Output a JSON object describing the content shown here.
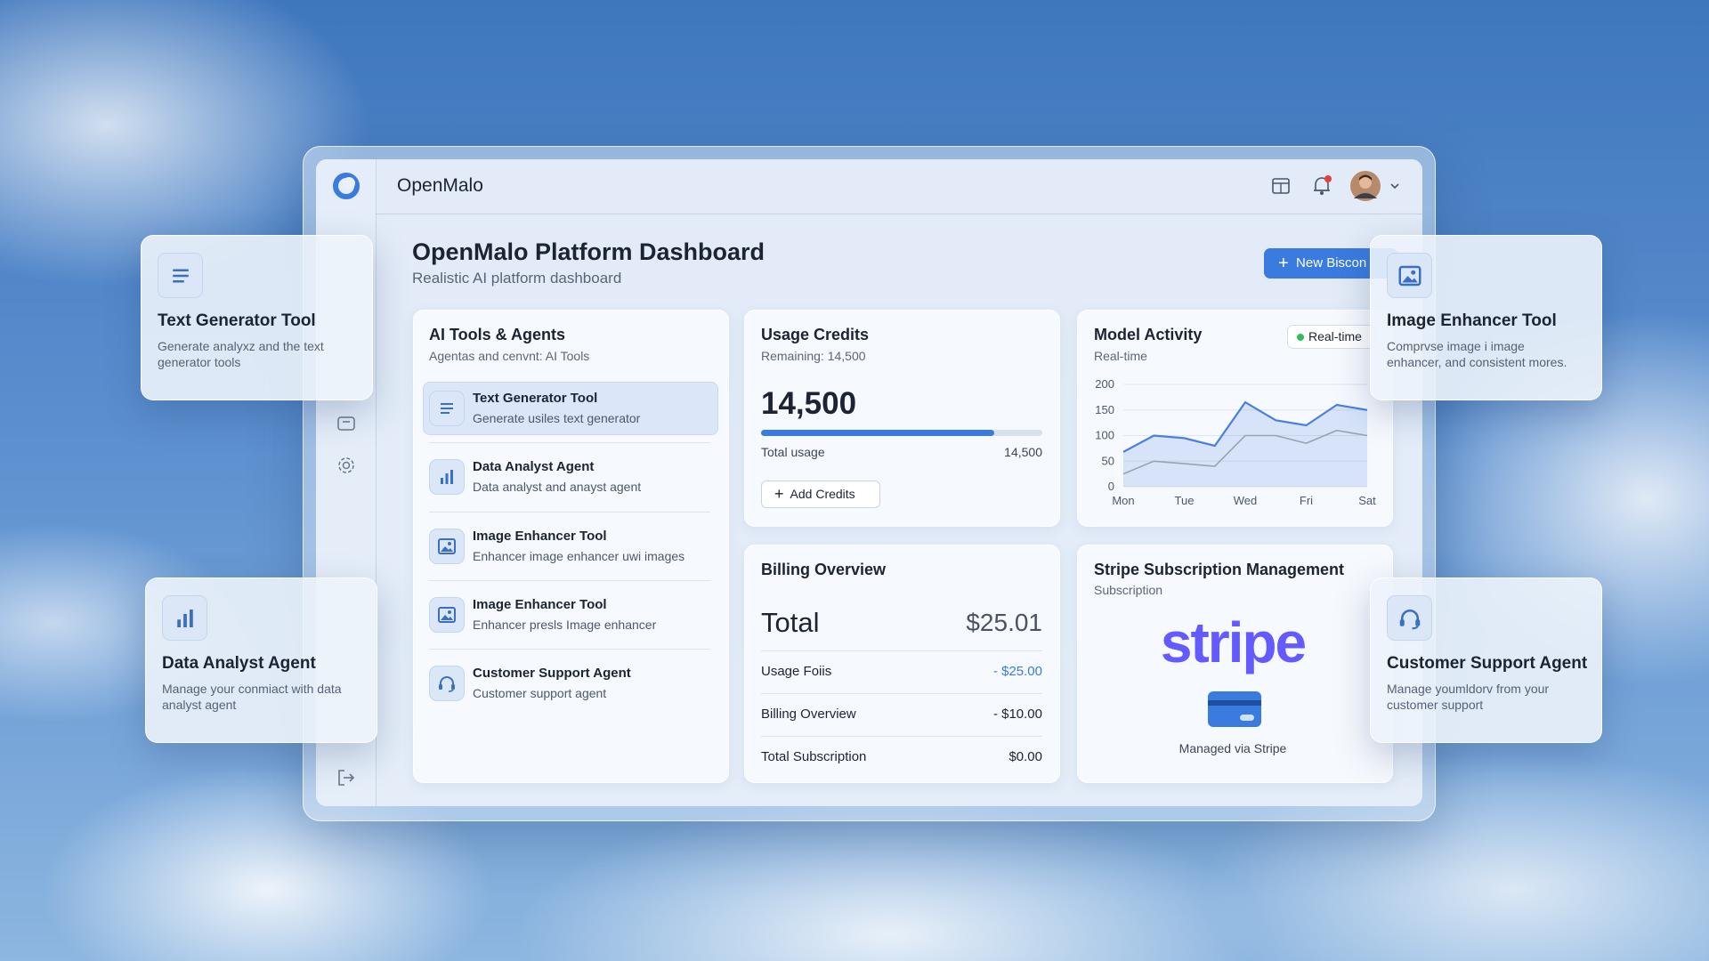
{
  "header": {
    "brand": "OpenMalo",
    "button": "New Biscon"
  },
  "dashboard": {
    "title": "OpenMalo Platform Dashboard",
    "subtitle": "Realistic AI platform dashboard"
  },
  "tools_card": {
    "title": "AI Tools & Agents",
    "subtitle": "Agentas and cenvnt: AI Tools",
    "items": [
      {
        "name": "Text Generator Tool",
        "desc": "Generate usiles text generator"
      },
      {
        "name": "Data Analyst Agent",
        "desc": "Data analyst and anayst agent"
      },
      {
        "name": "Image Enhancer Tool",
        "desc": "Enhancer image enhancer uwi images"
      },
      {
        "name": "Image Enhancer Tool",
        "desc": "Enhancer presls Image enhancer"
      },
      {
        "name": "Customer Support Agent",
        "desc": "Customer support agent"
      }
    ]
  },
  "usage": {
    "title": "Usage Credits",
    "remaining": "Remaining: 14,500",
    "big": "14,500",
    "progress": 83,
    "total_label": "Total usage",
    "total_value": "14,500",
    "button": "Add Credits"
  },
  "activity": {
    "title": "Model Activity",
    "subtitle": "Real-time",
    "badge": "Real-time",
    "chart": {
      "type": "line",
      "categories": [
        "Mon",
        null,
        "Tue",
        null,
        "Wed",
        null,
        "Fri",
        null,
        "Sat"
      ],
      "ylim": [
        0,
        200
      ],
      "yticks": [
        0,
        50,
        100,
        150,
        200
      ],
      "grid": true,
      "series": [
        {
          "color": "#4a7fe0",
          "values": [
            68,
            100,
            95,
            80,
            165,
            130,
            120,
            160,
            150
          ]
        },
        {
          "color": "#9aa3b0",
          "values": [
            25,
            50,
            45,
            40,
            100,
            100,
            85,
            110,
            100
          ]
        }
      ]
    }
  },
  "billing": {
    "title": "Billing Overview",
    "total_label": "Total",
    "total_value": "$25.01",
    "rows": [
      [
        "Usage Foiis",
        "- $25.00"
      ],
      [
        "Billing Overview",
        "- $10.00"
      ],
      [
        "Total Subscription",
        "$0.00"
      ]
    ]
  },
  "stripe": {
    "title": "Stripe Subscription Management",
    "subtitle": "Subscription",
    "logo": "stripe",
    "caption": "Managed via Stripe"
  },
  "floating": [
    {
      "title": "Text Generator Tool",
      "desc": "Generate analyxz and the text generator tools"
    },
    {
      "title": "Data Analyst Agent",
      "desc": "Manage your conmiact with data analyst agent"
    },
    {
      "title": "Image Enhancer Tool",
      "desc": "Comprvse image i image enhancer, and consistent mores."
    },
    {
      "title": "Customer Support Agent",
      "desc": "Manage youmldorv from your customer support"
    }
  ]
}
